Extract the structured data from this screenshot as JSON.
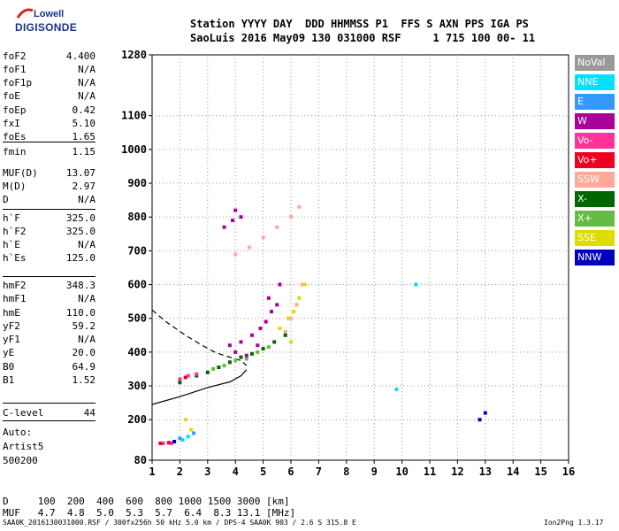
{
  "logo": {
    "line1": "Lowell",
    "line2": "DIGISONDE"
  },
  "header": {
    "line1": "Station YYYY DAY  DDD HHMMSS P1  FFS S AXN PPS IGA PS",
    "line2": "SaoLuis 2016 May09 130 031000 RSF     1 715 100 00- 11"
  },
  "params": [
    {
      "name": "foF2",
      "value": "4.400"
    },
    {
      "name": "foF1",
      "value": "N/A"
    },
    {
      "name": "foF1p",
      "value": "N/A"
    },
    {
      "name": "foE",
      "value": "N/A"
    },
    {
      "name": "foEp",
      "value": "0.42"
    },
    {
      "name": "fxI",
      "value": "5.10"
    },
    {
      "name": "foEs",
      "value": "1.65"
    },
    {
      "name": "fmin",
      "value": "1.15"
    },
    {
      "name": "MUF(D)",
      "value": "13.07"
    },
    {
      "name": "M(D)",
      "value": "2.97"
    },
    {
      "name": "D",
      "value": "N/A"
    },
    {
      "name": "h`F",
      "value": "325.0"
    },
    {
      "name": "h`F2",
      "value": "325.0"
    },
    {
      "name": "h`E",
      "value": "N/A"
    },
    {
      "name": "h`Es",
      "value": "125.0"
    },
    {
      "name": "hmF2",
      "value": "348.3"
    },
    {
      "name": "hmF1",
      "value": "N/A"
    },
    {
      "name": "hmE",
      "value": "110.0"
    },
    {
      "name": "yF2",
      "value": "59.2"
    },
    {
      "name": "yF1",
      "value": "N/A"
    },
    {
      "name": "yE",
      "value": "20.0"
    },
    {
      "name": "B0",
      "value": "64.9"
    },
    {
      "name": "B1",
      "value": "1.52"
    },
    {
      "name": "C-level",
      "value": "44"
    }
  ],
  "auto": {
    "line1": "Auto:",
    "line2": "Artist5",
    "line3": "500200"
  },
  "legend": [
    {
      "label": "NoVal",
      "color": "#999999"
    },
    {
      "label": "NNE",
      "color": "#00e0ff"
    },
    {
      "label": "E",
      "color": "#3399ff"
    },
    {
      "label": "W",
      "color": "#aa0099"
    },
    {
      "label": "Vo-",
      "color": "#ff3399"
    },
    {
      "label": "Vo+",
      "color": "#ee0022"
    },
    {
      "label": "SSW",
      "color": "#ffaa99"
    },
    {
      "label": "X-",
      "color": "#006600"
    },
    {
      "label": "X+",
      "color": "#66bb44"
    },
    {
      "label": "SSE",
      "color": "#dddd00"
    },
    {
      "label": "NNW",
      "color": "#0000bb"
    }
  ],
  "dmuf": {
    "d_line": "D     100  200  400  600  800 1000 1500 3000 [km]",
    "muf_line": "MUF   4.7  4.8  5.0  5.3  5.7  6.4  8.3 13.1 [MHz]"
  },
  "footer": {
    "left": "SAA0K_2016130031000.RSF / 300fx256h 50 kHz 5.0 km / DPS-4 SAA0K 903 / 2.6 S 315.8 E",
    "right": "Ion2Png 1.3.17"
  },
  "chart_data": {
    "type": "scatter",
    "title": "",
    "xlabel": "",
    "ylabel": "",
    "xlim": [
      1,
      16
    ],
    "ylim": [
      80,
      1280
    ],
    "x_ticks": [
      1,
      2,
      3,
      4,
      5,
      6,
      7,
      8,
      9,
      10,
      11,
      12,
      13,
      14,
      15,
      16
    ],
    "y_ticks": [
      80,
      200,
      300,
      400,
      500,
      600,
      700,
      800,
      900,
      1000,
      1100,
      1280
    ],
    "grid": true,
    "legend_position": "right",
    "series": [
      {
        "name": "W",
        "color": "#aa0099",
        "points": [
          [
            3.8,
            420
          ],
          [
            4.2,
            430
          ],
          [
            4.6,
            450
          ],
          [
            4.9,
            470
          ],
          [
            5.1,
            490
          ],
          [
            5.3,
            520
          ],
          [
            5.5,
            540
          ],
          [
            5.2,
            560
          ],
          [
            5.6,
            600
          ],
          [
            4.0,
            400
          ],
          [
            4.4,
            390
          ],
          [
            4.8,
            420
          ],
          [
            3.6,
            770
          ],
          [
            3.9,
            790
          ],
          [
            4.2,
            800
          ],
          [
            4.0,
            820
          ]
        ]
      },
      {
        "name": "SSW",
        "color": "#ffaa99",
        "points": [
          [
            5.8,
            460
          ],
          [
            6.0,
            500
          ],
          [
            6.2,
            540
          ],
          [
            6.4,
            600
          ],
          [
            6.1,
            520
          ],
          [
            4.0,
            690
          ],
          [
            4.5,
            710
          ],
          [
            5.0,
            740
          ],
          [
            5.5,
            770
          ],
          [
            6.0,
            800
          ],
          [
            6.3,
            830
          ]
        ]
      },
      {
        "name": "X-",
        "color": "#006600",
        "points": [
          [
            2.0,
            310
          ],
          [
            2.6,
            330
          ],
          [
            3.0,
            340
          ],
          [
            3.4,
            355
          ],
          [
            3.8,
            370
          ],
          [
            4.2,
            385
          ],
          [
            4.6,
            395
          ],
          [
            5.0,
            410
          ],
          [
            5.4,
            430
          ],
          [
            5.8,
            450
          ]
        ]
      },
      {
        "name": "X+",
        "color": "#66bb44",
        "points": [
          [
            3.2,
            350
          ],
          [
            3.6,
            360
          ],
          [
            4.0,
            375
          ],
          [
            4.4,
            380
          ],
          [
            4.8,
            400
          ],
          [
            5.2,
            415
          ]
        ]
      },
      {
        "name": "SSE",
        "color": "#dddd00",
        "points": [
          [
            5.6,
            470
          ],
          [
            5.9,
            500
          ],
          [
            6.1,
            520
          ],
          [
            6.3,
            560
          ],
          [
            6.5,
            600
          ],
          [
            6.0,
            430
          ],
          [
            2.2,
            200
          ],
          [
            2.4,
            170
          ]
        ]
      },
      {
        "name": "Vo-",
        "color": "#ff3399",
        "points": [
          [
            1.4,
            130
          ],
          [
            1.7,
            130
          ],
          [
            2.0,
            320
          ],
          [
            2.3,
            330
          ],
          [
            2.6,
            335
          ]
        ]
      },
      {
        "name": "Vo+",
        "color": "#ee0022",
        "points": [
          [
            1.3,
            130
          ],
          [
            1.6,
            132
          ],
          [
            2.2,
            325
          ]
        ]
      },
      {
        "name": "NNE",
        "color": "#00e0ff",
        "points": [
          [
            2.1,
            140
          ],
          [
            2.3,
            150
          ],
          [
            9.8,
            290
          ],
          [
            10.5,
            600
          ]
        ]
      },
      {
        "name": "E",
        "color": "#3399ff",
        "points": [
          [
            2.0,
            145
          ],
          [
            2.5,
            160
          ]
        ]
      },
      {
        "name": "NNW",
        "color": "#0000bb",
        "points": [
          [
            1.8,
            135
          ],
          [
            12.8,
            200
          ],
          [
            13.0,
            220
          ]
        ]
      }
    ],
    "profile_solid": [
      [
        1.0,
        245
      ],
      [
        2.0,
        268
      ],
      [
        3.0,
        295
      ],
      [
        3.8,
        312
      ],
      [
        4.2,
        330
      ],
      [
        4.4,
        348
      ]
    ],
    "profile_dashed": [
      [
        1.0,
        525
      ],
      [
        1.5,
        490
      ],
      [
        2.2,
        450
      ],
      [
        2.8,
        420
      ],
      [
        3.3,
        398
      ],
      [
        3.8,
        385
      ],
      [
        4.2,
        375
      ],
      [
        4.4,
        360
      ]
    ]
  }
}
